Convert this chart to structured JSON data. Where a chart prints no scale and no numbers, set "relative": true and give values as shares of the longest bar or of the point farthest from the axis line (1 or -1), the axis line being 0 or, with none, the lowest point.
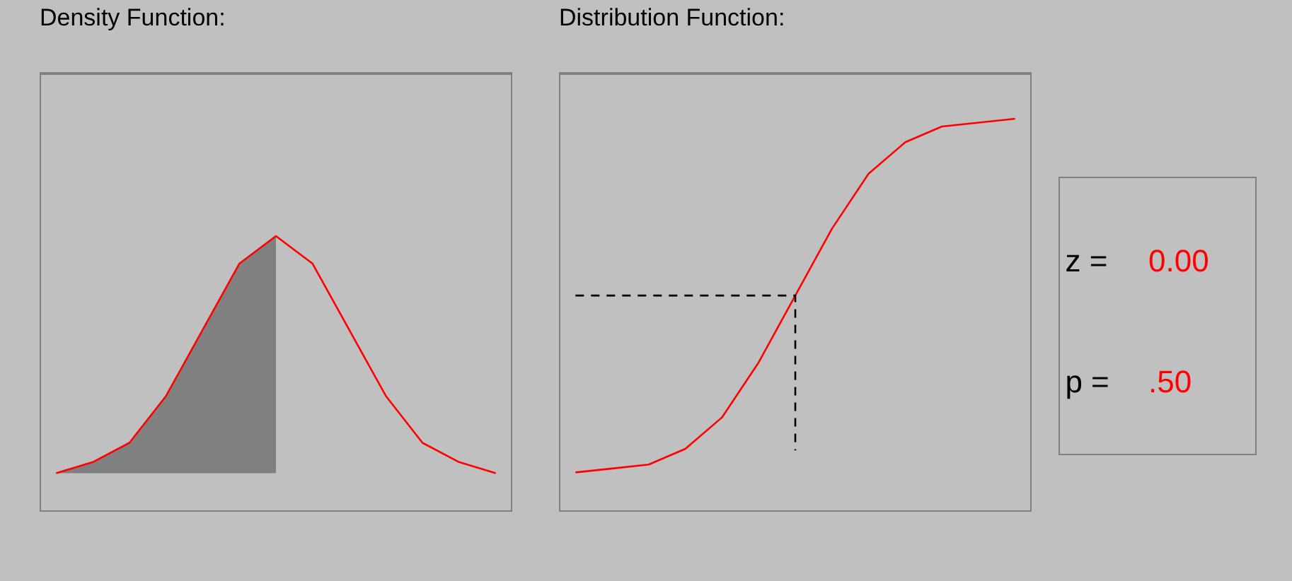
{
  "chart_data": [
    {
      "type": "line",
      "title": "Density Function:",
      "relative": true,
      "categories": [
        null,
        null,
        null,
        null,
        null,
        null,
        null,
        null,
        null,
        null,
        null,
        null,
        null
      ],
      "series": [
        {
          "color": "#ff0000",
          "values": [
            0.14,
            0.18,
            0.25,
            0.42,
            0.66,
            0.9,
            1,
            0.9,
            0.66,
            0.42,
            0.25,
            0.18,
            0.14
          ],
          "lower": [
            0.14,
            0.14,
            0.14,
            0.14,
            0.14,
            0.14,
            0.14,
            null,
            null,
            null,
            null,
            null,
            null
          ],
          "upper": [
            0.14,
            0.18,
            0.25,
            0.42,
            0.66,
            0.9,
            1,
            null,
            null,
            null,
            null,
            null,
            null
          ]
        }
      ]
    },
    {
      "type": "line",
      "title": "Distribution Function:",
      "relative": true,
      "categories": [
        null,
        null,
        null,
        null,
        null,
        null,
        null,
        null,
        null,
        null,
        null,
        null,
        null
      ],
      "series": [
        {
          "color": "#ff0000",
          "values": [
            0.1,
            0.11,
            0.12,
            0.16,
            0.24,
            0.38,
            0.55,
            0.72,
            0.86,
            0.94,
            0.98,
            0.99,
            1
          ]
        }
      ],
      "ref_lines": [
        {
          "axis": "y",
          "value": 0.55,
          "color": "#000000",
          "line_style": "dashed"
        }
      ]
    },
    {
      "type": "other",
      "annotations": [
        "z =",
        "0.00",
        "p =",
        ".50"
      ],
      "colors": [
        "#000000",
        "#ff0000",
        "#000000",
        "#ff0000"
      ]
    }
  ]
}
